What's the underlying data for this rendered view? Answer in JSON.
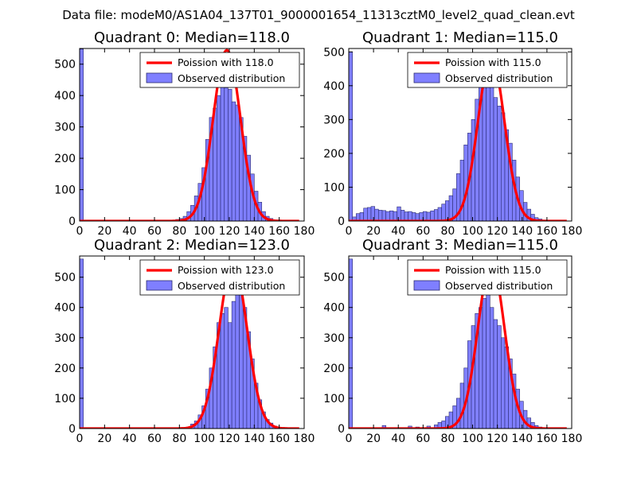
{
  "figure": {
    "title": "Data file: modeM0/AS1A04_137T01_9000001654_11313cztM0_level2_quad_clean.evt"
  },
  "colors": {
    "bar_fill": "#7f7fff",
    "bar_edge": "#2b2b6e",
    "curve": "#ff0000",
    "axes": "#000000"
  },
  "chart_data": [
    {
      "type": "bar",
      "title": "Quadrant 0: Median=118.0",
      "xlim": [
        0,
        180
      ],
      "ylim": [
        0,
        550
      ],
      "xticks": [
        "0",
        "20",
        "40",
        "60",
        "80",
        "100",
        "120",
        "140",
        "160",
        "180"
      ],
      "xtick_values": [
        0,
        20,
        40,
        60,
        80,
        100,
        120,
        140,
        160,
        180
      ],
      "yticks": [
        "0",
        "100",
        "200",
        "300",
        "400",
        "500"
      ],
      "ytick_values": [
        0,
        100,
        200,
        300,
        400,
        500
      ],
      "legend": [
        "Poission with 118.0",
        "Observed distribution"
      ],
      "poisson_mean": 118.0,
      "poisson_peak": 545,
      "bins": {
        "start": [
          0,
          77,
          80,
          83,
          86,
          89,
          92,
          95,
          98,
          101,
          104,
          107,
          110,
          113,
          116,
          119,
          122,
          125,
          128,
          131,
          134,
          137,
          140,
          143,
          146,
          149,
          152,
          155,
          158
        ],
        "width": 3,
        "counts": [
          548,
          5,
          8,
          15,
          30,
          50,
          80,
          120,
          170,
          260,
          330,
          360,
          400,
          430,
          425,
          420,
          380,
          370,
          330,
          270,
          210,
          150,
          95,
          60,
          30,
          15,
          8,
          3,
          1
        ]
      }
    },
    {
      "type": "bar",
      "title": "Quadrant 1: Median=115.0",
      "xlim": [
        0,
        180
      ],
      "ylim": [
        0,
        510
      ],
      "xticks": [
        "0",
        "20",
        "40",
        "60",
        "80",
        "100",
        "120",
        "140",
        "160",
        "180"
      ],
      "xtick_values": [
        0,
        20,
        40,
        60,
        80,
        100,
        120,
        140,
        160,
        180
      ],
      "yticks": [
        "0",
        "100",
        "200",
        "300",
        "400",
        "500"
      ],
      "ytick_values": [
        0,
        100,
        200,
        300,
        400,
        500
      ],
      "legend": [
        "Poission with 115.0",
        "Observed distribution"
      ],
      "poisson_mean": 115.0,
      "poisson_peak": 485,
      "bins": {
        "start": [
          0,
          3,
          6,
          9,
          12,
          15,
          18,
          21,
          24,
          27,
          30,
          33,
          36,
          39,
          42,
          45,
          48,
          51,
          54,
          57,
          60,
          63,
          66,
          69,
          72,
          75,
          78,
          81,
          84,
          87,
          90,
          93,
          96,
          99,
          102,
          105,
          108,
          111,
          114,
          117,
          120,
          123,
          126,
          129,
          132,
          135,
          138,
          141,
          144,
          147,
          150,
          153,
          156,
          159
        ],
        "width": 3,
        "counts": [
          500,
          12,
          22,
          25,
          38,
          40,
          43,
          35,
          32,
          31,
          28,
          30,
          28,
          42,
          32,
          27,
          28,
          25,
          22,
          25,
          28,
          26,
          30,
          34,
          40,
          50,
          60,
          75,
          95,
          140,
          180,
          225,
          260,
          300,
          360,
          400,
          430,
          480,
          400,
          365,
          340,
          320,
          270,
          230,
          180,
          130,
          90,
          55,
          35,
          20,
          10,
          6,
          3,
          1
        ]
      }
    },
    {
      "type": "bar",
      "title": "Quadrant 2: Median=123.0",
      "xlim": [
        0,
        180
      ],
      "ylim": [
        0,
        570
      ],
      "xticks": [
        "0",
        "20",
        "40",
        "60",
        "80",
        "100",
        "120",
        "140",
        "160",
        "180"
      ],
      "xtick_values": [
        0,
        20,
        40,
        60,
        80,
        100,
        120,
        140,
        160,
        180
      ],
      "yticks": [
        "0",
        "100",
        "200",
        "300",
        "400",
        "500"
      ],
      "ytick_values": [
        0,
        100,
        200,
        300,
        400,
        500
      ],
      "legend": [
        "Poission with 123.0",
        "Observed distribution"
      ],
      "poisson_mean": 123.0,
      "poisson_peak": 550,
      "bins": {
        "start": [
          0,
          89,
          92,
          95,
          98,
          101,
          104,
          107,
          110,
          113,
          116,
          119,
          122,
          125,
          128,
          131,
          134,
          137,
          140,
          143,
          146,
          149,
          152,
          155,
          158
        ],
        "width": 3,
        "counts": [
          560,
          15,
          25,
          45,
          75,
          130,
          200,
          270,
          350,
          380,
          400,
          350,
          420,
          490,
          465,
          400,
          320,
          230,
          150,
          95,
          55,
          30,
          18,
          8,
          3
        ]
      }
    },
    {
      "type": "bar",
      "title": "Quadrant 3: Median=115.0",
      "xlim": [
        0,
        180
      ],
      "ylim": [
        0,
        570
      ],
      "xticks": [
        "0",
        "20",
        "40",
        "60",
        "80",
        "100",
        "120",
        "140",
        "160",
        "180"
      ],
      "xtick_values": [
        0,
        20,
        40,
        60,
        80,
        100,
        120,
        140,
        160,
        180
      ],
      "yticks": [
        "0",
        "100",
        "200",
        "300",
        "400",
        "500"
      ],
      "ytick_values": [
        0,
        100,
        200,
        300,
        400,
        500
      ],
      "legend": [
        "Poission with 115.0",
        "Observed distribution"
      ],
      "poisson_mean": 115.0,
      "poisson_peak": 548,
      "bins": {
        "start": [
          0,
          27,
          48,
          54,
          63,
          69,
          72,
          75,
          78,
          81,
          84,
          87,
          90,
          93,
          96,
          99,
          102,
          105,
          108,
          111,
          114,
          117,
          120,
          123,
          126,
          129,
          132,
          135,
          138,
          141,
          144,
          147,
          150,
          153,
          156
        ],
        "width": 3,
        "counts": [
          560,
          10,
          8,
          5,
          8,
          12,
          20,
          25,
          40,
          55,
          75,
          100,
          150,
          200,
          290,
          340,
          380,
          400,
          430,
          460,
          400,
          360,
          340,
          300,
          270,
          230,
          180,
          130,
          90,
          60,
          35,
          20,
          10,
          5,
          2
        ]
      }
    }
  ]
}
